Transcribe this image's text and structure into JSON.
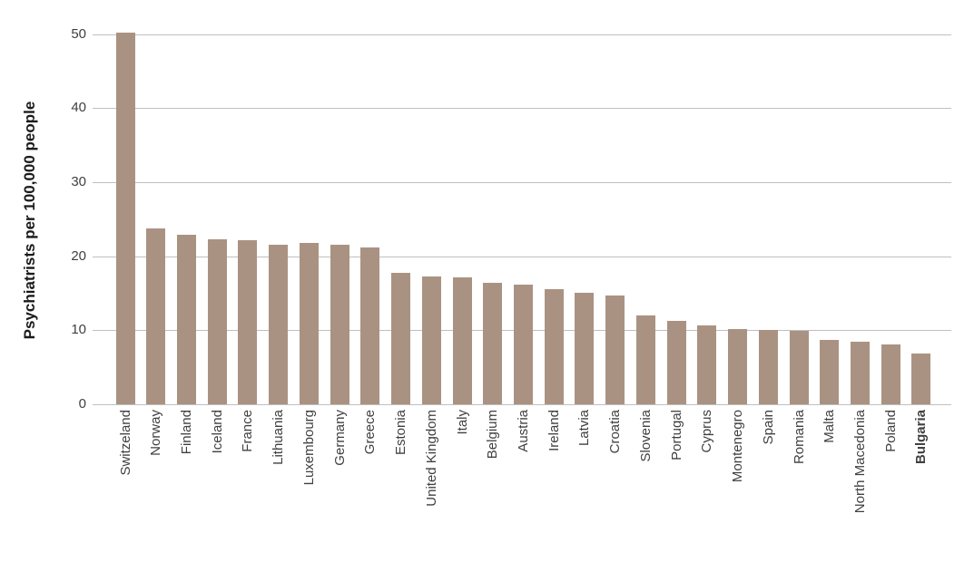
{
  "chart_data": {
    "type": "bar",
    "ylabel": "Psychiatrists per 100,000 people",
    "xlabel": "",
    "categories": [
      "Switzeland",
      "Norway",
      "Finland",
      "Iceland",
      "France",
      "Lithuania",
      "Luxembourg",
      "Germany",
      "Greece",
      "Estonia",
      "United Kingdom",
      "Italy",
      "Belgium",
      "Austria",
      "Ireland",
      "Latvia",
      "Croatia",
      "Slovenia",
      "Portugal",
      "Cyprus",
      "Montenegro",
      "Spain",
      "Romania",
      "Malta",
      "North Macedonia",
      "Poland",
      "Bulgaria"
    ],
    "values": [
      50.2,
      23.7,
      22.9,
      22.3,
      22.1,
      21.6,
      21.8,
      21.5,
      21.2,
      17.7,
      17.3,
      17.1,
      16.4,
      16.2,
      15.6,
      15.1,
      14.7,
      12.0,
      11.2,
      10.6,
      10.2,
      10.0,
      9.9,
      8.7,
      8.5,
      8.1,
      6.8
    ],
    "ylim": [
      0,
      50
    ],
    "yticks": [
      0,
      10,
      20,
      30,
      40,
      50
    ],
    "grid": "horizontal",
    "legend": "none",
    "emphasized_category": "Bulgaria",
    "colors": {
      "bar": "#aa9282",
      "gridline": "#bfbfbf",
      "tick_label": "#404040",
      "axis_title": "#1a1a1a",
      "background": "#ffffff"
    }
  }
}
